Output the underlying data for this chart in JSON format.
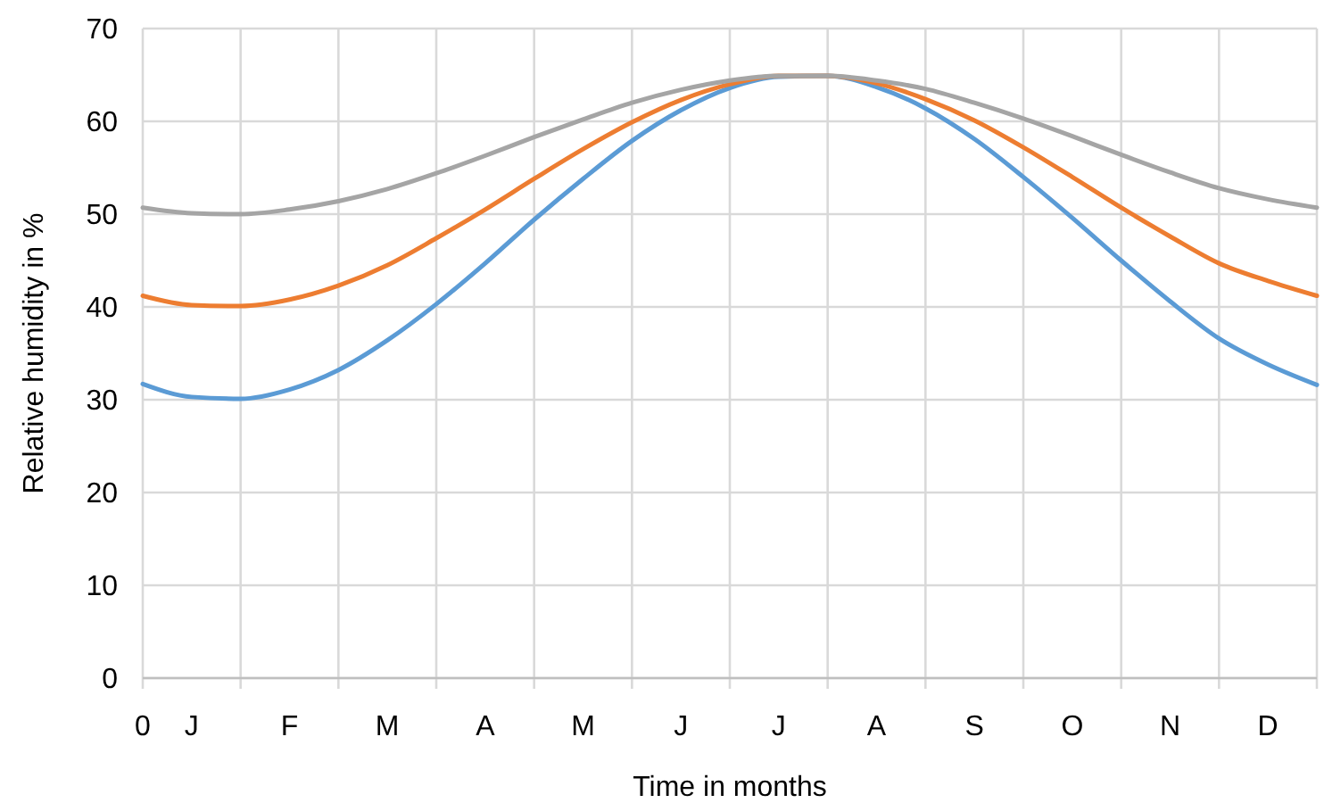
{
  "chart_data": {
    "type": "line",
    "xlabel": "Time in months",
    "ylabel": "Relative humidity in %",
    "categories": [
      "0",
      "J",
      null,
      "F",
      null,
      "M",
      null,
      "A",
      null,
      "M",
      null,
      "J",
      null,
      "J",
      null,
      "A",
      null,
      "S",
      null,
      "O",
      null,
      "N",
      null,
      "D",
      null
    ],
    "series": [
      {
        "color": "#5b9bd5",
        "values": [
          31.7,
          30.3,
          30.1,
          31.1,
          33.2,
          36.4,
          40.3,
          44.7,
          49.4,
          53.8,
          57.9,
          61.2,
          63.6,
          64.8,
          64.9,
          63.7,
          61.4,
          58.1,
          54.0,
          49.6,
          45.0,
          40.6,
          36.6,
          33.8,
          31.6
        ]
      },
      {
        "color": "#ed7d31",
        "values": [
          41.2,
          40.2,
          40.1,
          40.8,
          42.3,
          44.5,
          47.4,
          50.5,
          53.8,
          57.0,
          59.9,
          62.3,
          64.0,
          64.9,
          64.9,
          64.1,
          62.4,
          60.1,
          57.2,
          54.0,
          50.7,
          47.6,
          44.7,
          42.8,
          41.2
        ]
      },
      {
        "color": "#a5a5a5",
        "values": [
          50.7,
          50.1,
          50.0,
          50.5,
          51.4,
          52.7,
          54.4,
          56.3,
          58.3,
          60.2,
          62.0,
          63.4,
          64.4,
          64.9,
          64.9,
          64.4,
          63.5,
          62.0,
          60.3,
          58.4,
          56.4,
          54.5,
          52.8,
          51.6,
          50.7
        ]
      }
    ],
    "ylim": [
      0,
      70
    ],
    "yticks": [
      0,
      10,
      20,
      30,
      40,
      50,
      60,
      70
    ],
    "grid": true,
    "line_style": "solid"
  }
}
